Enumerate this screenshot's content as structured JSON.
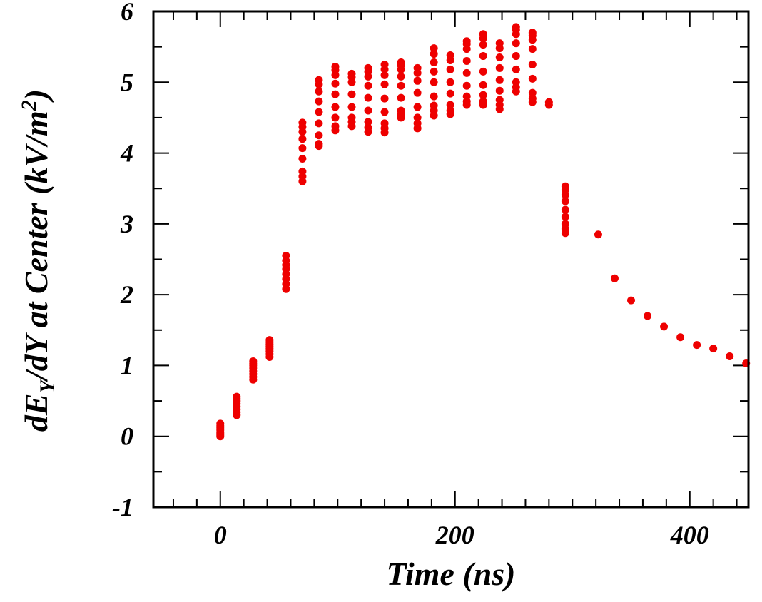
{
  "chart_data": {
    "type": "scatter",
    "title": "",
    "xlabel": "Time (ns)",
    "ylabel": {
      "pre": "dE",
      "sub": "Y",
      "mid": "/dY at Center (kV/m",
      "sup": "2",
      "post": ")"
    },
    "xlim": [
      -57,
      450
    ],
    "ylim": [
      -1,
      6
    ],
    "x_ticks": [
      0,
      200,
      400
    ],
    "x_tick_labels": [
      "0",
      "200",
      "400"
    ],
    "x_minor_step": 20,
    "y_ticks": [
      -1,
      0,
      1,
      2,
      3,
      4,
      5,
      6
    ],
    "y_tick_labels": [
      "-1",
      "0",
      "1",
      "2",
      "3",
      "4",
      "5",
      "6"
    ],
    "y_minor_step": 0.5,
    "grid": false,
    "marker_color": "#ee0000",
    "series": [
      {
        "columns": [
          {
            "x": 0,
            "y": [
              0.0,
              0.02,
              0.04,
              0.06,
              0.09,
              0.12,
              0.15,
              0.18
            ]
          },
          {
            "x": 14,
            "y": [
              0.3,
              0.34,
              0.38,
              0.42,
              0.46,
              0.5,
              0.53,
              0.56
            ]
          },
          {
            "x": 28,
            "y": [
              0.8,
              0.84,
              0.88,
              0.92,
              0.96,
              1.0,
              1.03,
              1.06
            ]
          },
          {
            "x": 42,
            "y": [
              1.12,
              1.16,
              1.2,
              1.24,
              1.27,
              1.3,
              1.33,
              1.36
            ]
          },
          {
            "x": 56,
            "y": [
              2.08,
              2.15,
              2.22,
              2.29,
              2.36,
              2.42,
              2.48,
              2.55
            ]
          },
          {
            "x": 70,
            "y": [
              3.6,
              3.67,
              3.74,
              3.92,
              4.07,
              4.2,
              4.3,
              4.37,
              4.43
            ]
          },
          {
            "x": 84,
            "y": [
              4.1,
              4.13,
              4.25,
              4.42,
              4.58,
              4.73,
              4.87,
              4.97,
              5.03
            ]
          },
          {
            "x": 98,
            "y": [
              4.32,
              4.38,
              4.5,
              4.65,
              4.83,
              4.98,
              5.1,
              5.17,
              5.22
            ]
          },
          {
            "x": 112,
            "y": [
              4.38,
              4.44,
              4.5,
              4.65,
              4.83,
              5.0,
              5.07,
              5.12
            ]
          },
          {
            "x": 126,
            "y": [
              4.3,
              4.36,
              4.44,
              4.6,
              4.78,
              4.95,
              5.08,
              5.15,
              5.2
            ]
          },
          {
            "x": 140,
            "y": [
              4.29,
              4.35,
              4.42,
              4.58,
              4.77,
              4.97,
              5.1,
              5.18,
              5.25
            ]
          },
          {
            "x": 154,
            "y": [
              4.5,
              4.55,
              4.6,
              4.78,
              4.95,
              5.08,
              5.18,
              5.24,
              5.28
            ]
          },
          {
            "x": 168,
            "y": [
              4.35,
              4.42,
              4.5,
              4.65,
              4.85,
              5.02,
              5.13,
              5.2
            ]
          },
          {
            "x": 182,
            "y": [
              4.53,
              4.6,
              4.67,
              4.8,
              5.0,
              5.15,
              5.28,
              5.4,
              5.48
            ]
          },
          {
            "x": 196,
            "y": [
              4.55,
              4.6,
              4.68,
              4.84,
              5.0,
              5.18,
              5.31,
              5.38
            ]
          },
          {
            "x": 210,
            "y": [
              4.68,
              4.73,
              4.8,
              4.95,
              5.13,
              5.3,
              5.47,
              5.54,
              5.58
            ]
          },
          {
            "x": 224,
            "y": [
              4.68,
              4.73,
              4.82,
              4.96,
              5.15,
              5.37,
              5.53,
              5.62,
              5.68
            ]
          },
          {
            "x": 238,
            "y": [
              4.62,
              4.68,
              4.75,
              4.88,
              5.03,
              5.2,
              5.35,
              5.48,
              5.55
            ]
          },
          {
            "x": 252,
            "y": [
              4.87,
              4.93,
              5.0,
              5.18,
              5.37,
              5.55,
              5.68,
              5.74,
              5.78
            ]
          },
          {
            "x": 266,
            "y": [
              4.72,
              4.77,
              4.85,
              5.05,
              5.25,
              5.47,
              5.6,
              5.66,
              5.7
            ]
          },
          {
            "x": 280,
            "y": [
              4.68,
              4.72
            ]
          },
          {
            "x": 294,
            "y": [
              2.87,
              2.93,
              3.0,
              3.1,
              3.2,
              3.32,
              3.41,
              3.48,
              3.53
            ]
          },
          {
            "x": 322,
            "y": [
              2.85
            ]
          },
          {
            "x": 336,
            "y": [
              2.23
            ]
          },
          {
            "x": 350,
            "y": [
              1.92
            ]
          },
          {
            "x": 364,
            "y": [
              1.7
            ]
          },
          {
            "x": 378,
            "y": [
              1.55
            ]
          },
          {
            "x": 392,
            "y": [
              1.4
            ]
          },
          {
            "x": 406,
            "y": [
              1.29
            ]
          },
          {
            "x": 420,
            "y": [
              1.24
            ]
          },
          {
            "x": 434,
            "y": [
              1.13
            ]
          },
          {
            "x": 448,
            "y": [
              1.03
            ]
          }
        ]
      }
    ]
  }
}
